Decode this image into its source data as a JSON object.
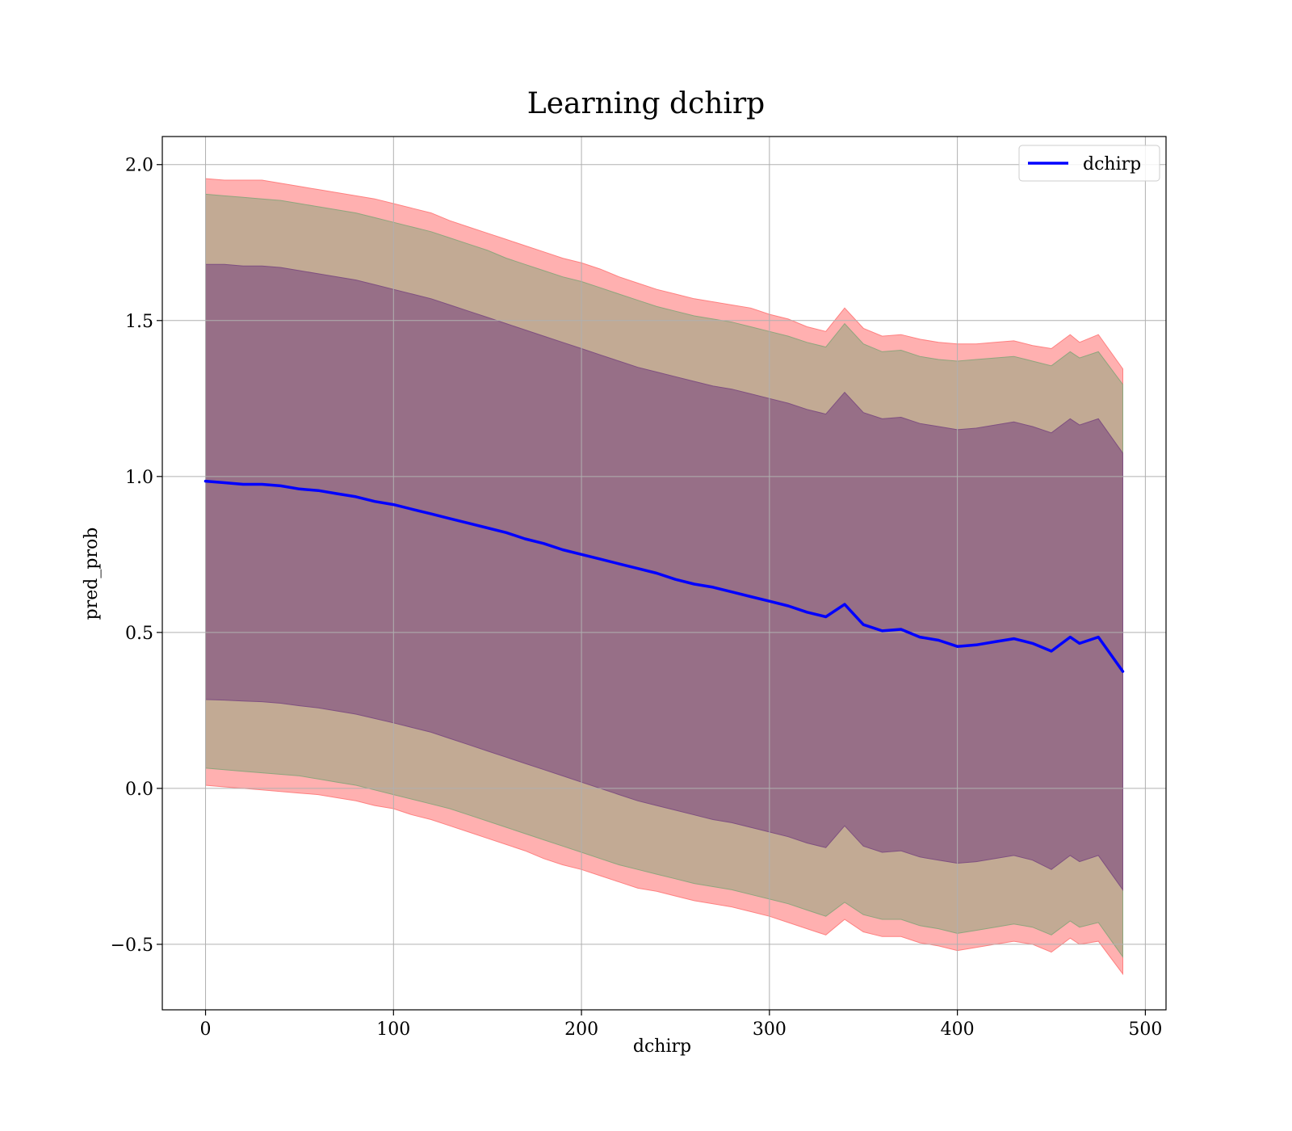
{
  "chart_data": {
    "type": "line",
    "title": "Learning dchirp",
    "xlabel": "dchirp",
    "ylabel": "pred_prob",
    "xlim": [
      -23,
      511
    ],
    "ylim": [
      -0.71,
      2.09
    ],
    "xticks": [
      0,
      100,
      200,
      300,
      400,
      500
    ],
    "xtick_labels": [
      "0",
      "100",
      "200",
      "300",
      "400",
      "500"
    ],
    "yticks": [
      -0.5,
      0.0,
      0.5,
      1.0,
      1.5,
      2.0
    ],
    "ytick_labels": [
      "−0.5",
      "0.0",
      "0.5",
      "1.0",
      "1.5",
      "2.0"
    ],
    "grid": true,
    "legend": {
      "placement": "top-right",
      "entries": [
        "dchirp"
      ]
    },
    "colors": {
      "line": "#0000ff",
      "band_outer": "#ff8080",
      "band_middle": "#8fa57d",
      "band_inner": "#7f5080"
    },
    "series": [
      {
        "name": "dchirp",
        "x": [
          0,
          10,
          20,
          30,
          40,
          50,
          60,
          70,
          80,
          90,
          100,
          110,
          120,
          130,
          140,
          150,
          160,
          170,
          180,
          190,
          200,
          210,
          220,
          230,
          240,
          250,
          260,
          270,
          280,
          290,
          300,
          310,
          320,
          330,
          340,
          350,
          360,
          370,
          380,
          390,
          400,
          410,
          420,
          430,
          440,
          450,
          460,
          465,
          475,
          488
        ],
        "values": [
          0.985,
          0.98,
          0.975,
          0.975,
          0.97,
          0.96,
          0.955,
          0.945,
          0.935,
          0.92,
          0.91,
          0.895,
          0.88,
          0.865,
          0.85,
          0.835,
          0.82,
          0.8,
          0.785,
          0.765,
          0.75,
          0.735,
          0.72,
          0.705,
          0.69,
          0.67,
          0.655,
          0.645,
          0.63,
          0.615,
          0.6,
          0.585,
          0.565,
          0.55,
          0.59,
          0.525,
          0.505,
          0.51,
          0.485,
          0.475,
          0.455,
          0.46,
          0.47,
          0.48,
          0.465,
          0.44,
          0.485,
          0.465,
          0.485,
          0.375
        ]
      }
    ],
    "bands": [
      {
        "level": "outer",
        "upper": [
          1.955,
          1.95,
          1.95,
          1.95,
          1.94,
          1.93,
          1.92,
          1.91,
          1.9,
          1.89,
          1.875,
          1.86,
          1.845,
          1.82,
          1.8,
          1.78,
          1.76,
          1.74,
          1.72,
          1.7,
          1.685,
          1.665,
          1.64,
          1.62,
          1.6,
          1.585,
          1.57,
          1.56,
          1.55,
          1.54,
          1.52,
          1.505,
          1.48,
          1.465,
          1.54,
          1.475,
          1.45,
          1.455,
          1.44,
          1.43,
          1.425,
          1.425,
          1.43,
          1.435,
          1.42,
          1.41,
          1.455,
          1.43,
          1.455,
          1.345
        ],
        "lower": [
          0.01,
          0.005,
          0.0,
          -0.005,
          -0.01,
          -0.015,
          -0.02,
          -0.03,
          -0.04,
          -0.055,
          -0.065,
          -0.085,
          -0.1,
          -0.12,
          -0.14,
          -0.16,
          -0.18,
          -0.2,
          -0.225,
          -0.245,
          -0.26,
          -0.28,
          -0.3,
          -0.32,
          -0.33,
          -0.345,
          -0.36,
          -0.37,
          -0.38,
          -0.395,
          -0.41,
          -0.43,
          -0.45,
          -0.47,
          -0.42,
          -0.46,
          -0.475,
          -0.475,
          -0.495,
          -0.505,
          -0.52,
          -0.51,
          -0.5,
          -0.49,
          -0.5,
          -0.525,
          -0.48,
          -0.5,
          -0.49,
          -0.595
        ]
      },
      {
        "level": "middle",
        "upper": [
          1.905,
          1.9,
          1.895,
          1.89,
          1.885,
          1.875,
          1.865,
          1.855,
          1.845,
          1.83,
          1.815,
          1.8,
          1.785,
          1.765,
          1.745,
          1.725,
          1.7,
          1.68,
          1.66,
          1.64,
          1.625,
          1.605,
          1.585,
          1.565,
          1.545,
          1.53,
          1.515,
          1.505,
          1.495,
          1.48,
          1.465,
          1.45,
          1.43,
          1.415,
          1.49,
          1.425,
          1.4,
          1.405,
          1.385,
          1.375,
          1.37,
          1.375,
          1.38,
          1.385,
          1.37,
          1.355,
          1.4,
          1.38,
          1.4,
          1.295
        ],
        "lower": [
          0.065,
          0.06,
          0.055,
          0.05,
          0.045,
          0.04,
          0.03,
          0.02,
          0.01,
          -0.005,
          -0.02,
          -0.035,
          -0.05,
          -0.065,
          -0.085,
          -0.105,
          -0.125,
          -0.145,
          -0.165,
          -0.185,
          -0.205,
          -0.225,
          -0.245,
          -0.26,
          -0.275,
          -0.29,
          -0.305,
          -0.315,
          -0.325,
          -0.34,
          -0.355,
          -0.37,
          -0.39,
          -0.41,
          -0.365,
          -0.405,
          -0.42,
          -0.42,
          -0.44,
          -0.45,
          -0.465,
          -0.455,
          -0.445,
          -0.435,
          -0.445,
          -0.47,
          -0.425,
          -0.445,
          -0.43,
          -0.54
        ]
      },
      {
        "level": "inner",
        "upper": [
          1.68,
          1.68,
          1.675,
          1.675,
          1.67,
          1.66,
          1.65,
          1.64,
          1.63,
          1.615,
          1.6,
          1.585,
          1.57,
          1.55,
          1.53,
          1.51,
          1.49,
          1.47,
          1.45,
          1.43,
          1.41,
          1.39,
          1.37,
          1.35,
          1.335,
          1.32,
          1.305,
          1.29,
          1.28,
          1.265,
          1.25,
          1.235,
          1.215,
          1.2,
          1.27,
          1.205,
          1.185,
          1.19,
          1.17,
          1.16,
          1.15,
          1.155,
          1.165,
          1.175,
          1.16,
          1.14,
          1.185,
          1.165,
          1.185,
          1.075
        ],
        "lower": [
          0.285,
          0.283,
          0.28,
          0.278,
          0.273,
          0.265,
          0.258,
          0.248,
          0.238,
          0.224,
          0.21,
          0.195,
          0.18,
          0.16,
          0.14,
          0.12,
          0.1,
          0.08,
          0.06,
          0.04,
          0.02,
          0.0,
          -0.02,
          -0.04,
          -0.055,
          -0.07,
          -0.085,
          -0.1,
          -0.11,
          -0.125,
          -0.14,
          -0.155,
          -0.175,
          -0.19,
          -0.12,
          -0.185,
          -0.205,
          -0.2,
          -0.22,
          -0.23,
          -0.24,
          -0.235,
          -0.225,
          -0.215,
          -0.23,
          -0.26,
          -0.215,
          -0.235,
          -0.215,
          -0.325
        ]
      }
    ]
  }
}
